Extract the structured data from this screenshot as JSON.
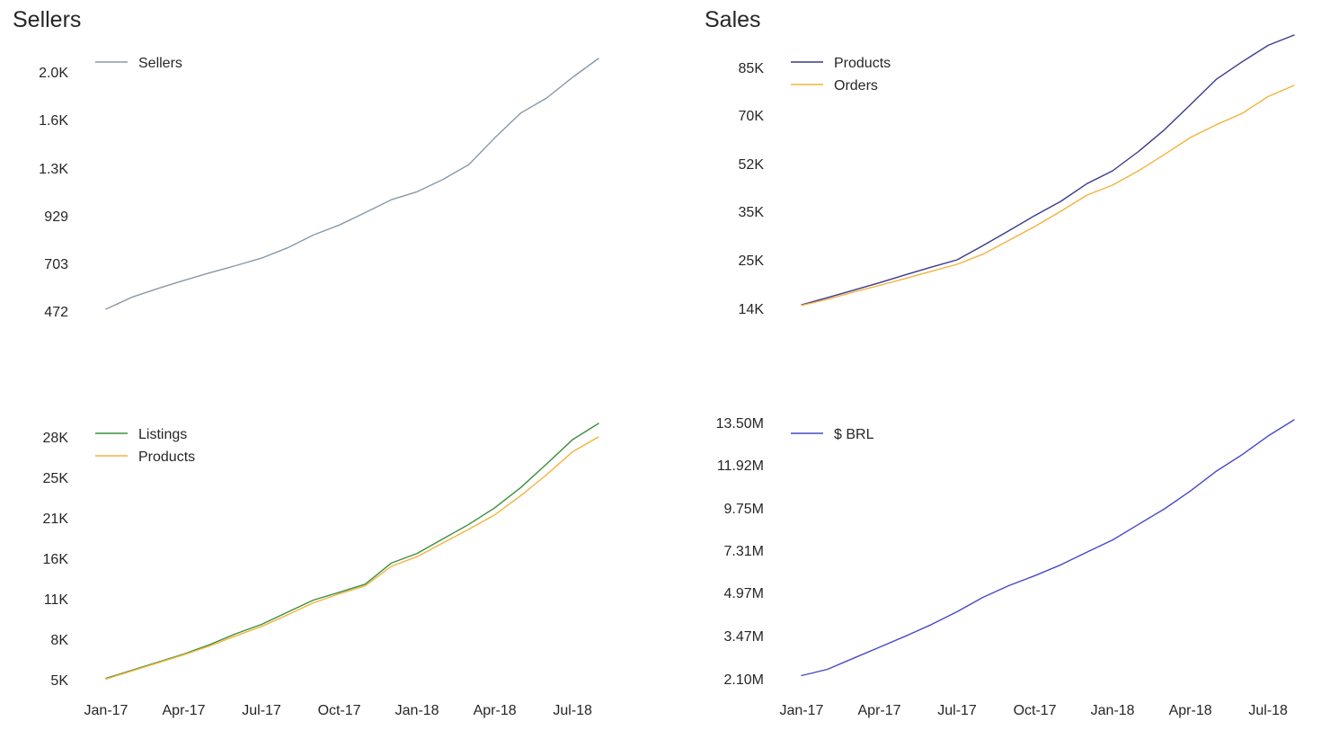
{
  "chart_data": [
    {
      "type": "line",
      "title": "Sellers",
      "y_scale": "log",
      "x": [
        "Jan-17",
        "Feb-17",
        "Mar-17",
        "Apr-17",
        "May-17",
        "Jun-17",
        "Jul-17",
        "Aug-17",
        "Sep-17",
        "Oct-17",
        "Nov-17",
        "Dec-17",
        "Jan-18",
        "Feb-18",
        "Mar-18",
        "Apr-18",
        "May-18",
        "Jun-18",
        "Jul-18",
        "Aug-18"
      ],
      "x_ticks": [
        "Jan-17",
        "Apr-17",
        "Jul-17",
        "Oct-17",
        "Jan-18",
        "Apr-18",
        "Jul-18"
      ],
      "y_ticks": [
        472,
        703,
        929,
        1300,
        1600,
        2000
      ],
      "y_tick_labels": [
        "472",
        "703",
        "929",
        "1.3K",
        "1.6K",
        "2.0K"
      ],
      "ylim": [
        458,
        2120
      ],
      "legend": "top-left",
      "series": [
        {
          "name": "Sellers",
          "color": "#8899a8",
          "values": [
            480,
            530,
            570,
            610,
            650,
            690,
            725,
            770,
            830,
            880,
            950,
            1040,
            1100,
            1200,
            1320,
            1480,
            1650,
            1770,
            1950,
            2130
          ]
        }
      ]
    },
    {
      "type": "line",
      "title": "Sales",
      "y_scale": "log",
      "x": [
        "Jan-17",
        "Feb-17",
        "Mar-17",
        "Apr-17",
        "May-17",
        "Jun-17",
        "Jul-17",
        "Aug-17",
        "Sep-17",
        "Oct-17",
        "Nov-17",
        "Dec-17",
        "Jan-18",
        "Feb-18",
        "Mar-18",
        "Apr-18",
        "May-18",
        "Jun-18",
        "Jul-18",
        "Aug-18"
      ],
      "x_ticks": [
        "Jan-17",
        "Apr-17",
        "Jul-17",
        "Oct-17",
        "Jan-18",
        "Apr-18",
        "Jul-18"
      ],
      "y_ticks": [
        14000,
        25000,
        35000,
        52000,
        70000,
        85000
      ],
      "y_tick_labels": [
        "14K",
        "25K",
        "35K",
        "52K",
        "70K",
        "85K"
      ],
      "ylim": [
        13500,
        95000
      ],
      "legend": "top-left",
      "series": [
        {
          "name": "Products",
          "color": "#3a3a8c",
          "values": [
            14600,
            15900,
            17400,
            19000,
            20900,
            22900,
            25000,
            27600,
            30600,
            34000,
            38000,
            44000,
            49000,
            56000,
            64000,
            73000,
            81000,
            87000,
            93000,
            97000
          ]
        },
        {
          "name": "Orders",
          "color": "#f2b33d",
          "values": [
            14500,
            15600,
            17000,
            18400,
            20000,
            21800,
            23700,
            26000,
            28600,
            31500,
            35000,
            40000,
            43500,
            49000,
            55000,
            61000,
            66000,
            70500,
            75500,
            79000
          ]
        }
      ]
    },
    {
      "type": "line",
      "title": "",
      "x": [
        "Jan-17",
        "Feb-17",
        "Mar-17",
        "Apr-17",
        "May-17",
        "Jun-17",
        "Jul-17",
        "Aug-17",
        "Sep-17",
        "Oct-17",
        "Nov-17",
        "Dec-17",
        "Jan-18",
        "Feb-18",
        "Mar-18",
        "Apr-18",
        "May-18",
        "Jun-18",
        "Jul-18",
        "Aug-18"
      ],
      "x_ticks": [
        "Jan-17",
        "Apr-17",
        "Jul-17",
        "Oct-17",
        "Jan-18",
        "Apr-18",
        "Jul-18"
      ],
      "y_ticks": [
        5000,
        8000,
        11000,
        16000,
        21000,
        25000,
        28000
      ],
      "y_tick_labels": [
        "5K",
        "8K",
        "11K",
        "16K",
        "21K",
        "25K",
        "28K"
      ],
      "legend": "top-left",
      "series": [
        {
          "name": "Listings",
          "color": "#3d8f3d",
          "values": [
            5100,
            5700,
            6300,
            6900,
            7600,
            8400,
            9100,
            10000,
            10900,
            11800,
            12800,
            15400,
            16600,
            18400,
            20200,
            22000,
            24000,
            26000,
            27800,
            29000
          ]
        },
        {
          "name": "Products",
          "color": "#f2b33d",
          "values": [
            5050,
            5650,
            6250,
            6850,
            7500,
            8250,
            8950,
            9800,
            10700,
            11600,
            12600,
            15000,
            16200,
            17900,
            19600,
            21300,
            23200,
            25200,
            26900,
            28000
          ]
        }
      ]
    },
    {
      "type": "line",
      "title": "",
      "x": [
        "Jan-17",
        "Feb-17",
        "Mar-17",
        "Apr-17",
        "May-17",
        "Jun-17",
        "Jul-17",
        "Aug-17",
        "Sep-17",
        "Oct-17",
        "Nov-17",
        "Dec-17",
        "Jan-18",
        "Feb-18",
        "Mar-18",
        "Apr-18",
        "May-18",
        "Jun-18",
        "Jul-18",
        "Aug-18"
      ],
      "x_ticks": [
        "Jan-17",
        "Apr-17",
        "Jul-17",
        "Oct-17",
        "Jan-18",
        "Apr-18",
        "Jul-18"
      ],
      "y_ticks": [
        2100000,
        3470000,
        4970000,
        7310000,
        9750000,
        11920000,
        13500000
      ],
      "y_tick_labels": [
        "2.10M",
        "3.47M",
        "4.97M",
        "7.31M",
        "9.75M",
        "11.92M",
        "13.50M"
      ],
      "legend": "top-left",
      "series": [
        {
          "name": "$ BRL",
          "color": "#4848c8",
          "values": [
            2200000,
            2400000,
            2750000,
            3100000,
            3450000,
            3850000,
            4300000,
            4800000,
            5350000,
            5900000,
            6500000,
            7200000,
            7900000,
            8800000,
            9700000,
            10600000,
            11600000,
            12300000,
            13000000,
            13600000
          ]
        }
      ]
    }
  ]
}
